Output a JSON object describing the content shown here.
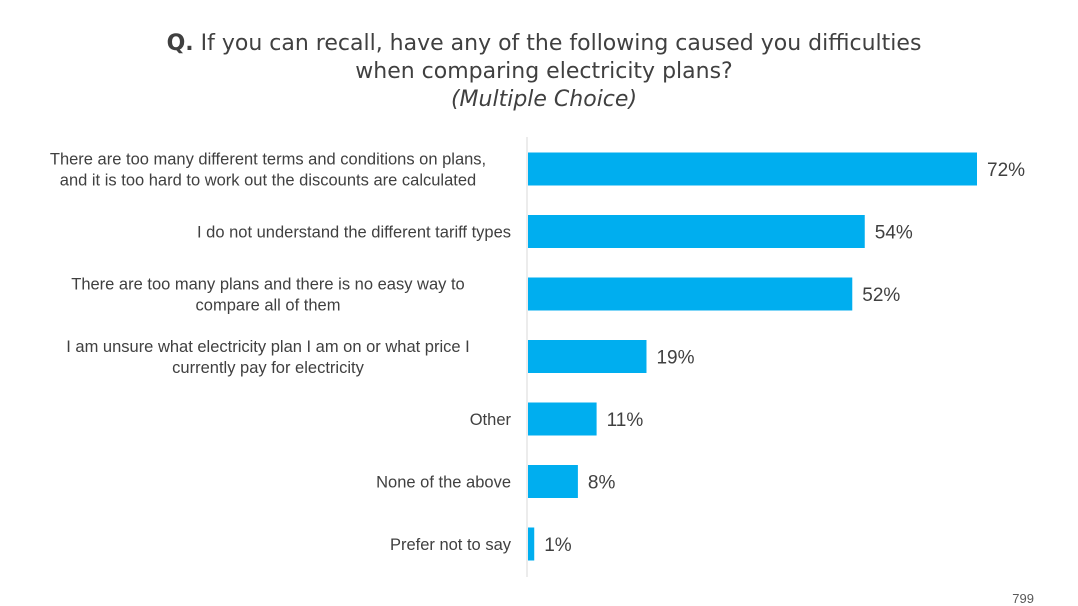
{
  "header": {
    "q_prefix": "Q.",
    "title_line1": " If you can recall, have any of the following caused you difficulties",
    "title_line2": "when comparing electricity plans?",
    "subtitle": "(Multiple Choice)"
  },
  "footer": {
    "page_number": "799"
  },
  "colors": {
    "bar": "#00AEEF",
    "axis": "#D9D9D9",
    "text": "#404040"
  },
  "chart_data": {
    "type": "bar",
    "orientation": "horizontal",
    "title": "Q. If you can recall, have any of the following caused you difficulties when comparing electricity plans?",
    "subtitle": "(Multiple Choice)",
    "xlabel": "",
    "ylabel": "",
    "xlim": [
      0,
      100
    ],
    "grid": false,
    "legend": "none",
    "categories": [
      [
        "There are too many different terms and conditions on plans,",
        "and it is too hard to work out the discounts are calculated"
      ],
      [
        "I do not understand the different tariff types"
      ],
      [
        "There are too many plans and there is no easy way to",
        "compare all of them"
      ],
      [
        "I am unsure what electricity plan I am on or what price I",
        "currently pay for electricity"
      ],
      [
        "Other"
      ],
      [
        "None of the above"
      ],
      [
        "Prefer not to say"
      ]
    ],
    "values": [
      72,
      54,
      52,
      19,
      11,
      8,
      1
    ],
    "value_labels": [
      "72%",
      "54%",
      "52%",
      "19%",
      "11%",
      "8%",
      "1%"
    ]
  }
}
